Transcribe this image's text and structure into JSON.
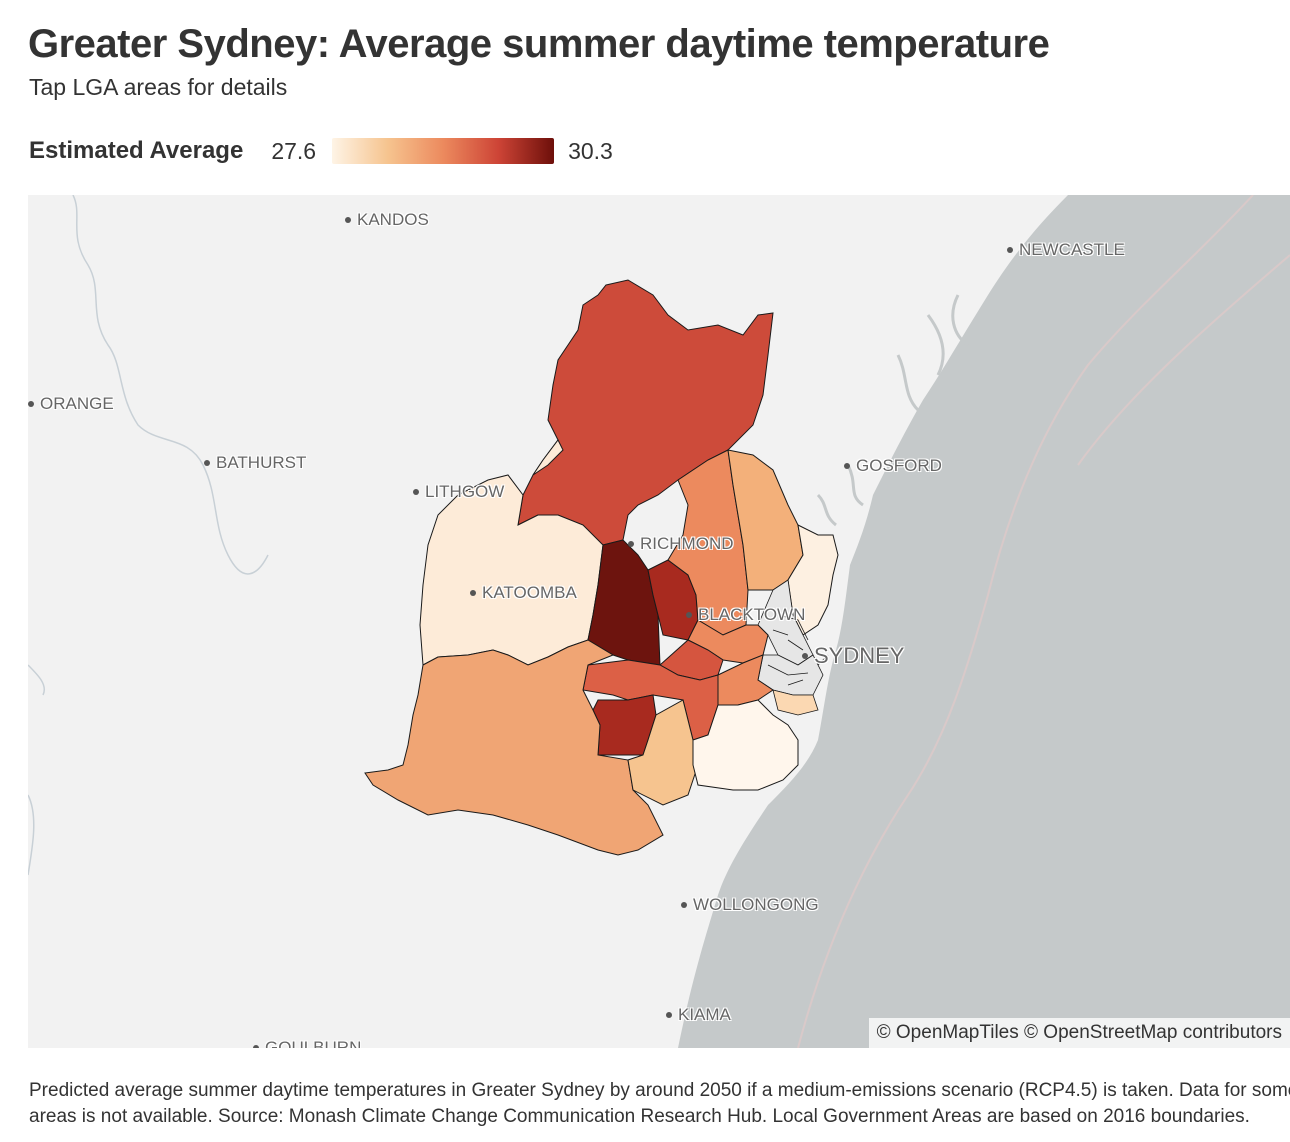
{
  "header": {
    "title": "Greater Sydney: Average summer daytime temperature",
    "subtitle": "Tap LGA areas for details"
  },
  "legend": {
    "title": "Estimated Average",
    "min": "27.6",
    "max": "30.3",
    "scale_colors": [
      "#fef4e6",
      "#f6c48f",
      "#ec8a5e",
      "#cd4436",
      "#6d0f0a"
    ]
  },
  "map": {
    "colors": {
      "land": "#f2f2f2",
      "water": "#c5c9ca",
      "no_data": "#e6e6e6",
      "border": "#1a1a1a"
    },
    "cities": [
      {
        "name": "KANDOS"
      },
      {
        "name": "NEWCASTLE"
      },
      {
        "name": "ORANGE"
      },
      {
        "name": "BATHURST"
      },
      {
        "name": "LITHGOW"
      },
      {
        "name": "GOSFORD"
      },
      {
        "name": "RICHMOND"
      },
      {
        "name": "KATOOMBA"
      },
      {
        "name": "BLACKTOWN"
      },
      {
        "name": "SYDNEY"
      },
      {
        "name": "WOLLONGONG"
      },
      {
        "name": "KIAMA"
      },
      {
        "name": "GOULBURN"
      }
    ],
    "attribution": "© OpenMapTiles © OpenStreetMap contributors"
  },
  "footer": {
    "line1": "Predicted average summer daytime temperatures in Greater Sydney by around 2050 if a medium-emissions scenario (RCP4.5) is taken. Data for some",
    "line2": "areas is not available. Source: Monash Climate Change Communication Research Hub. Local Government Areas are based on 2016 boundaries."
  }
}
